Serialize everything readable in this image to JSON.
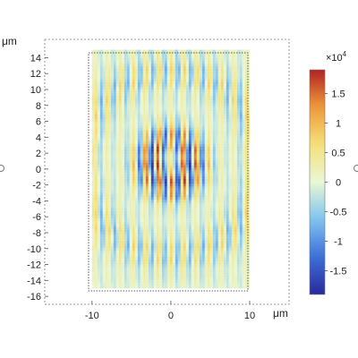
{
  "chart_data": {
    "type": "heatmap",
    "x_unit": "μm",
    "y_unit": "μm",
    "x_ticks": [
      -10,
      0,
      10
    ],
    "y_ticks": [
      14,
      12,
      10,
      8,
      6,
      4,
      2,
      0,
      -2,
      -4,
      -6,
      -8,
      -10,
      -12,
      -14,
      -16
    ],
    "xlim": [
      -10,
      10
    ],
    "ylim": [
      -15,
      15
    ],
    "axis_view": {
      "x": [
        -16,
        15
      ],
      "y": [
        -17,
        16.3
      ]
    },
    "colorbar": {
      "multiplier": "×10",
      "exponent": "4",
      "ticks": [
        1.5,
        1,
        0.5,
        0,
        -0.5,
        -1,
        -1.5
      ],
      "range": [
        -1.9,
        1.9
      ],
      "colors": [
        "#2a2a9c",
        "#3c6fd9",
        "#7fc3ee",
        "#e8f7d6",
        "#f4e27a",
        "#ef9a3a",
        "#b22222"
      ]
    },
    "field": {
      "wavelength": 1.6,
      "center": [
        0,
        0.7
      ],
      "core_radius": 5,
      "ring_radius": 11.5,
      "ring_width": 2.5
    }
  }
}
